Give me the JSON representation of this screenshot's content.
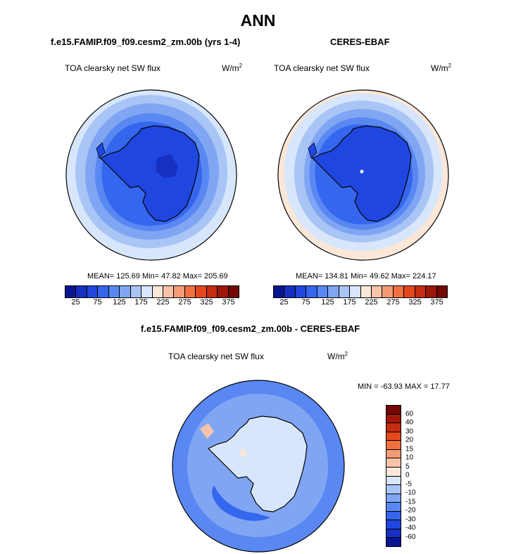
{
  "figure": {
    "title": "ANN",
    "left_panel_title": "f.e15.FAMIP.f09_f09.cesm2_zm.00b (yrs 1-4)",
    "right_panel_title": "CERES-EBAF",
    "diff_panel_title": "f.e15.FAMIP.f09_f09.cesm2_zm.00b - CERES-EBAF",
    "variable": "TOA clearsky net SW flux",
    "units_base": "W/m",
    "units_exp": "2"
  },
  "panels": {
    "model": {
      "stats": "MEAN= 125.69  Min=  47.82  Max= 205.69"
    },
    "obs": {
      "stats": "MEAN= 134.81  Min=  49.62  Max= 224.17"
    },
    "diff": {
      "stats": "MIN = -63.93 MAX =  17.77"
    }
  },
  "colorbar_main": {
    "colors": [
      "#0a1690",
      "#1730c2",
      "#2046e0",
      "#3566ee",
      "#5a88f2",
      "#80a6f3",
      "#a9c5f6",
      "#d7e6fb",
      "#fbe7d8",
      "#f8c4a9",
      "#f49a74",
      "#f0703f",
      "#e5481c",
      "#c52c10",
      "#9c170a",
      "#730805"
    ],
    "tick_labels": [
      "25",
      "75",
      "125",
      "175",
      "225",
      "275",
      "325",
      "375"
    ]
  },
  "colorbar_diff": {
    "colors": [
      "#730805",
      "#a3180b",
      "#c52c10",
      "#e5481c",
      "#f0703f",
      "#f49a74",
      "#f8c4a9",
      "#fbe7d8",
      "#d7e6fb",
      "#a9c5f6",
      "#80a6f3",
      "#5a88f2",
      "#3566ee",
      "#2046e0",
      "#1730c2",
      "#0a1690"
    ],
    "tick_labels": [
      "60",
      "40",
      "30",
      "20",
      "15",
      "10",
      "5",
      "0",
      "-5",
      "-10",
      "-15",
      "-20",
      "-30",
      "-40",
      "-60"
    ]
  },
  "map_colors": {
    "model": {
      "outer": "#d7e6fb",
      "ring1": "#a9c5f6",
      "ring2": "#80a6f3",
      "ring3": "#5a88f2",
      "ice_edge": "#3566ee",
      "land": "#2046e0",
      "plateau": "#1730c2"
    },
    "obs": {
      "outer": "#fbe7d8",
      "ring0": "#d7e6fb",
      "ring1": "#a9c5f6",
      "ring2": "#80a6f3",
      "ring3": "#5a88f2",
      "ice_edge": "#3566ee",
      "land": "#2046e0"
    },
    "diff": {
      "ocean": "#5a88f2",
      "mid": "#80a6f3",
      "inner": "#3566ee",
      "land": "#d7e6fb",
      "warm": "#fbe7d8",
      "warm2": "#f8c4a9"
    }
  }
}
